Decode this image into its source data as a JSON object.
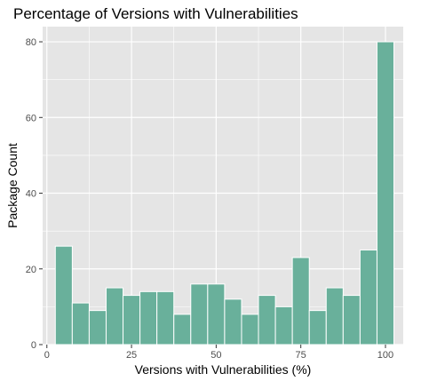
{
  "colors": {
    "panel_background": "#e5e5e5",
    "grid_major": "#ffffff",
    "bar_fill": "#69b09b",
    "bar_outline": "#ffffff",
    "tick_text": "#4d4d4d",
    "title_text": "#000000"
  },
  "chart_data": {
    "type": "bar",
    "subtype": "histogram",
    "title": "Percentage of Versions with Vulnerabilities",
    "xlabel": "Versions with Vulnerabilities (%)",
    "ylabel": "Package Count",
    "xlim": [
      -1.25,
      105.25
    ],
    "ylim": [
      0,
      84
    ],
    "x_ticks": [
      0,
      25,
      50,
      75,
      100
    ],
    "y_ticks": [
      0,
      20,
      40,
      60,
      80
    ],
    "grid": true,
    "legend": "none",
    "bin_width": 5,
    "bin_edges": [
      2.5,
      7.5,
      12.5,
      17.5,
      22.5,
      27.5,
      32.5,
      37.5,
      42.5,
      47.5,
      52.5,
      57.5,
      62.5,
      67.5,
      72.5,
      77.5,
      82.5,
      87.5,
      92.5,
      97.5,
      102.5
    ],
    "bin_centers": [
      5,
      10,
      15,
      20,
      25,
      30,
      35,
      40,
      45,
      50,
      55,
      60,
      65,
      70,
      75,
      80,
      85,
      90,
      95,
      100
    ],
    "values": [
      26,
      11,
      9,
      15,
      13,
      14,
      14,
      8,
      16,
      16,
      12,
      8,
      13,
      10,
      23,
      9,
      15,
      13,
      25,
      80
    ]
  }
}
